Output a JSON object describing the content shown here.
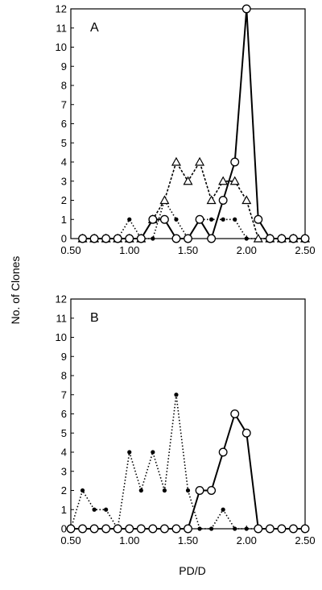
{
  "figure": {
    "shared_ylabel": "No. of Clones",
    "shared_xlabel": "PD/D"
  },
  "chart_data": [
    {
      "type": "line",
      "panel_label": "A",
      "xlabel": "",
      "ylabel": "No. of Clones",
      "xlim": [
        0.5,
        2.5
      ],
      "ylim": [
        0,
        12
      ],
      "xticks": [
        "0.50",
        "1.00",
        "1.50",
        "2.00",
        "2.50"
      ],
      "yticks": [
        "0",
        "1",
        "2",
        "3",
        "4",
        "5",
        "6",
        "7",
        "8",
        "9",
        "10",
        "11",
        "12"
      ],
      "grid": false,
      "legend": "none",
      "series": [
        {
          "marker": "dot",
          "line": "dotted",
          "x": [
            0.6,
            0.7,
            0.8,
            0.9,
            1.0,
            1.1,
            1.2,
            1.3,
            1.4,
            1.5,
            1.6,
            1.7,
            1.8,
            1.9,
            2.0,
            2.1,
            2.2,
            2.3,
            2.4,
            2.5
          ],
          "y": [
            0,
            0,
            0,
            0,
            1,
            0,
            0,
            2,
            1,
            0,
            1,
            1,
            1,
            1,
            0,
            0,
            0,
            0,
            0,
            0
          ]
        },
        {
          "marker": "triangle",
          "line": "dashed",
          "x": [
            0.6,
            0.7,
            0.8,
            0.9,
            1.0,
            1.1,
            1.2,
            1.3,
            1.4,
            1.5,
            1.6,
            1.7,
            1.8,
            1.9,
            2.0,
            2.1,
            2.2,
            2.3,
            2.4,
            2.5
          ],
          "y": [
            0,
            0,
            0,
            0,
            0,
            0,
            1,
            2,
            4,
            3,
            4,
            2,
            3,
            3,
            2,
            0,
            0,
            0,
            0,
            0
          ]
        },
        {
          "marker": "circle",
          "line": "solid",
          "x": [
            0.6,
            0.7,
            0.8,
            0.9,
            1.0,
            1.1,
            1.2,
            1.3,
            1.4,
            1.5,
            1.6,
            1.7,
            1.8,
            1.9,
            2.0,
            2.1,
            2.2,
            2.3,
            2.4,
            2.5
          ],
          "y": [
            0,
            0,
            0,
            0,
            0,
            0,
            1,
            1,
            0,
            0,
            1,
            0,
            2,
            4,
            12,
            1,
            0,
            0,
            0,
            0
          ]
        }
      ]
    },
    {
      "type": "line",
      "panel_label": "B",
      "xlabel": "PD/D",
      "ylabel": "No. of Clones",
      "xlim": [
        0.5,
        2.5
      ],
      "ylim": [
        0,
        12
      ],
      "xticks": [
        "0.50",
        "1.00",
        "1.50",
        "2.00",
        "2.50"
      ],
      "yticks": [
        "0",
        "1",
        "2",
        "3",
        "4",
        "5",
        "6",
        "7",
        "8",
        "9",
        "10",
        "11",
        "12"
      ],
      "grid": false,
      "legend": "none",
      "series": [
        {
          "marker": "dot",
          "line": "dotted",
          "x": [
            0.5,
            0.6,
            0.7,
            0.8,
            0.9,
            1.0,
            1.1,
            1.2,
            1.3,
            1.4,
            1.5,
            1.6,
            1.7,
            1.8,
            1.9,
            2.0,
            2.1,
            2.2,
            2.3,
            2.4,
            2.5
          ],
          "y": [
            0,
            2,
            1,
            1,
            0,
            4,
            2,
            4,
            2,
            7,
            2,
            0,
            0,
            1,
            0,
            0,
            0,
            0,
            0,
            0,
            0
          ]
        },
        {
          "marker": "circle",
          "line": "solid",
          "x": [
            0.5,
            0.6,
            0.7,
            0.8,
            0.9,
            1.0,
            1.1,
            1.2,
            1.3,
            1.4,
            1.5,
            1.6,
            1.7,
            1.8,
            1.9,
            2.0,
            2.1,
            2.2,
            2.3,
            2.4,
            2.5
          ],
          "y": [
            0,
            0,
            0,
            0,
            0,
            0,
            0,
            0,
            0,
            0,
            0,
            2,
            2,
            4,
            6,
            5,
            0,
            0,
            0,
            0,
            0
          ]
        }
      ]
    }
  ]
}
